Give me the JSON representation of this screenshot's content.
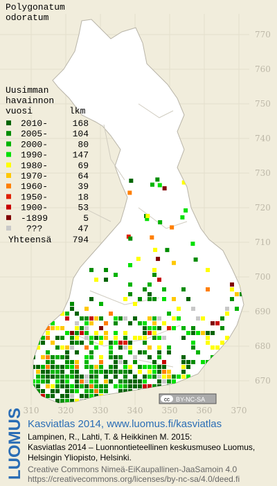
{
  "title": [
    "Polygonatum",
    "odoratum"
  ],
  "legend": {
    "heading": [
      "Uusimman",
      "havainnon",
      "vuosi"
    ],
    "count_heading": "lkm",
    "items": [
      {
        "label": "2010-",
        "count": 168,
        "color": "#006400"
      },
      {
        "label": "2005-",
        "count": 104,
        "color": "#008c00"
      },
      {
        "label": "2000-",
        "count": 80,
        "color": "#00b400"
      },
      {
        "label": "1990-",
        "count": 147,
        "color": "#00e000"
      },
      {
        "label": "1980-",
        "count": 69,
        "color": "#ffff00"
      },
      {
        "label": "1970-",
        "count": 64,
        "color": "#ffc800"
      },
      {
        "label": "1960-",
        "count": 39,
        "color": "#ff7f00"
      },
      {
        "label": "1950-",
        "count": 18,
        "color": "#e02000"
      },
      {
        "label": "1900-",
        "count": 53,
        "color": "#c80000"
      },
      {
        "label": "-1899",
        "count": 5,
        "color": "#800000"
      },
      {
        "label": "???",
        "count": 47,
        "color": "#c8c8c8"
      }
    ],
    "total_label": "Yhteensä",
    "total": 794
  },
  "grid": {
    "xlim": [
      310,
      370
    ],
    "ylim": [
      670,
      770
    ],
    "xticks": [
      310,
      320,
      330,
      340,
      350,
      360,
      370
    ],
    "yticks": [
      670,
      680,
      690,
      700,
      710,
      720,
      730,
      740,
      750,
      760,
      770
    ]
  },
  "badge_icon": "cc",
  "badge": "BY-NC-SA",
  "footer": {
    "logo": "LUOMUS",
    "link": "Kasviatlas 2014, www.luomus.fi/kasviatlas",
    "citation": [
      "Lampinen, R., Lahti, T. & Heikkinen M. 2015:",
      "Kasviatlas 2014 – Luonnontieteellinen keskusmuseo Luomus,",
      "Helsingin Yliopisto, Helsinki."
    ],
    "license": [
      "Creative Commons Nimeä-EiKaupallinen-JaaSamoin 4.0",
      "https://creativecommons.org/licenses/by-nc-sa/4.0/deed.fi"
    ]
  }
}
